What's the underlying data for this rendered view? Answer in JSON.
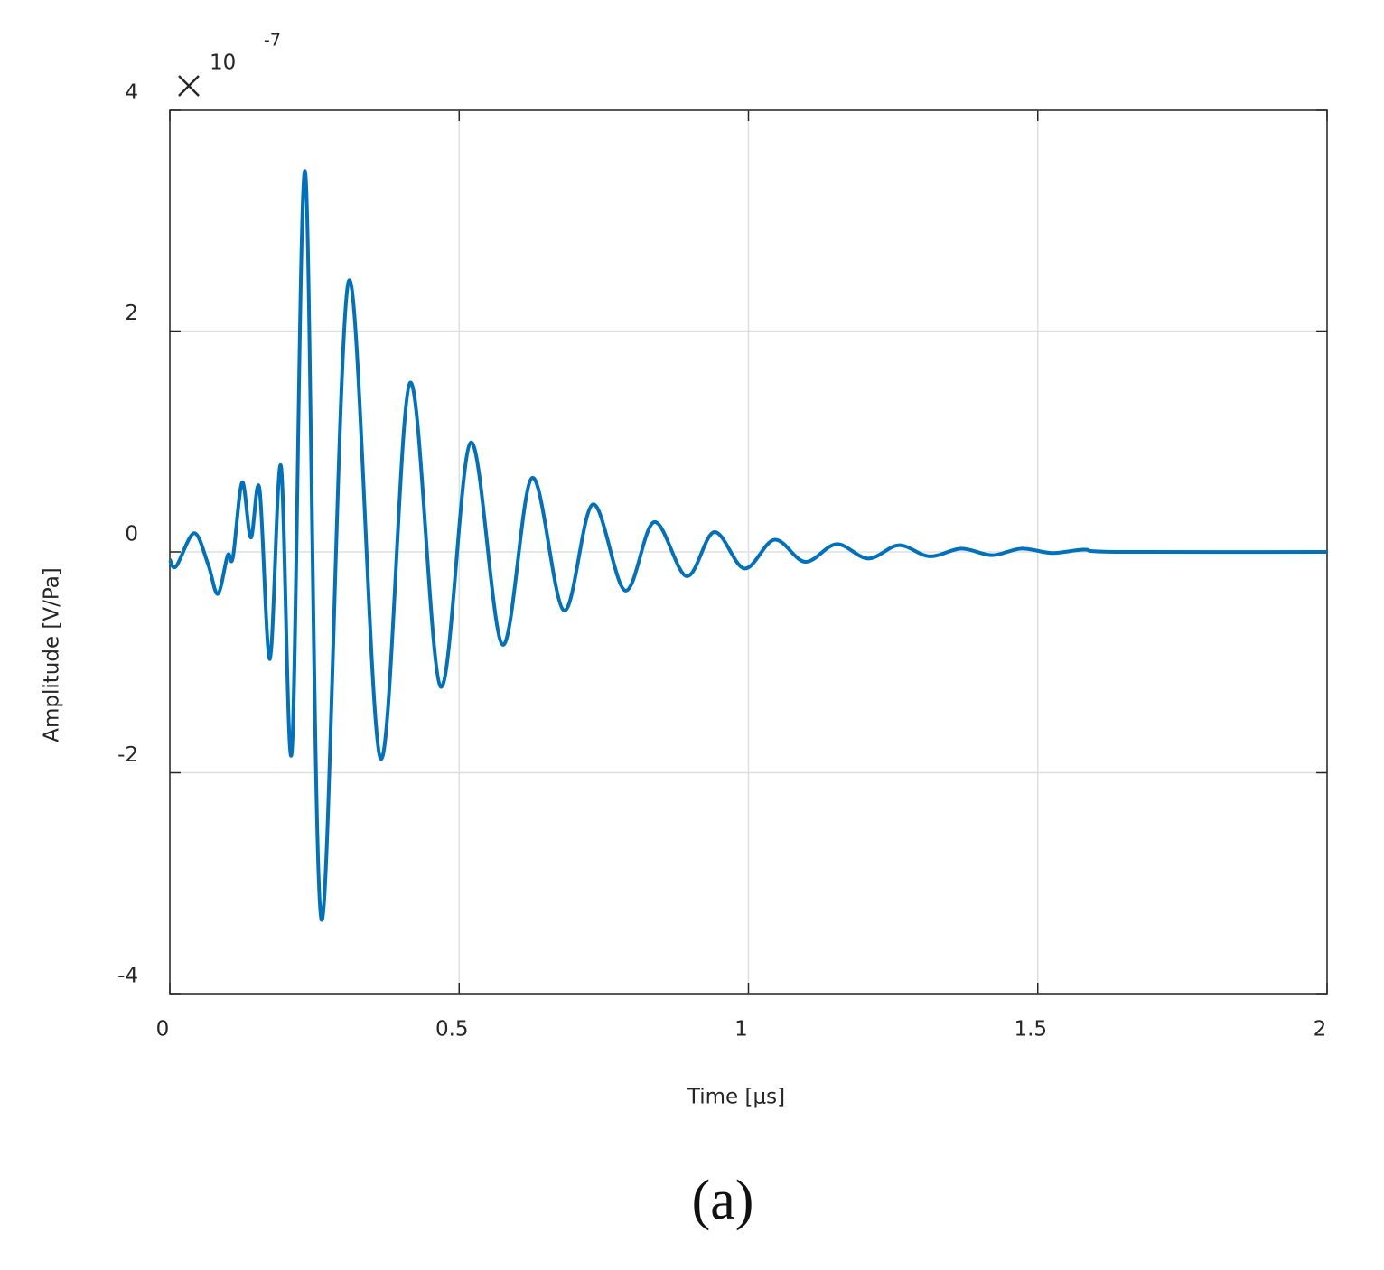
{
  "chart_data": {
    "type": "line",
    "xlabel": "Time [μs]",
    "ylabel": "Amplitude [V/Pa]",
    "y_multiplier_base": "10",
    "y_multiplier_exponent": "-7",
    "caption": "(a)",
    "x": [
      0,
      0.011,
      0.042,
      0.066,
      0.083,
      0.1,
      0.109,
      0.125,
      0.14,
      0.155,
      0.173,
      0.192,
      0.211,
      0.234,
      0.262,
      0.309,
      0.364,
      0.415,
      0.468,
      0.52,
      0.575,
      0.626,
      0.681,
      0.731,
      0.787,
      0.837,
      0.893,
      0.941,
      0.993,
      1.045,
      1.098,
      1.152,
      1.207,
      1.26,
      1.313,
      1.368,
      1.421,
      1.472,
      1.525,
      1.58,
      1.635,
      2
    ],
    "series": [
      {
        "color": "#0072bd",
        "values": [
          -0.07,
          -0.13,
          0.17,
          -0.11,
          -0.38,
          -0.03,
          -0.05,
          0.63,
          0.13,
          0.57,
          -0.97,
          0.78,
          -1.8,
          3.44,
          -3.33,
          2.45,
          -1.87,
          1.53,
          -1.22,
          0.99,
          -0.84,
          0.67,
          -0.53,
          0.43,
          -0.35,
          0.27,
          -0.22,
          0.18,
          -0.15,
          0.11,
          -0.09,
          0.07,
          -0.06,
          0.06,
          -0.04,
          0.03,
          -0.03,
          0.03,
          -0.01,
          0.02,
          0,
          0
        ]
      }
    ],
    "xlim": [
      0,
      2
    ],
    "xticks": [
      0,
      0.5,
      1,
      1.5,
      2
    ],
    "ylim": [
      -4,
      4
    ],
    "yticks": [
      -4,
      -2,
      0,
      2,
      4
    ],
    "grid": true
  }
}
